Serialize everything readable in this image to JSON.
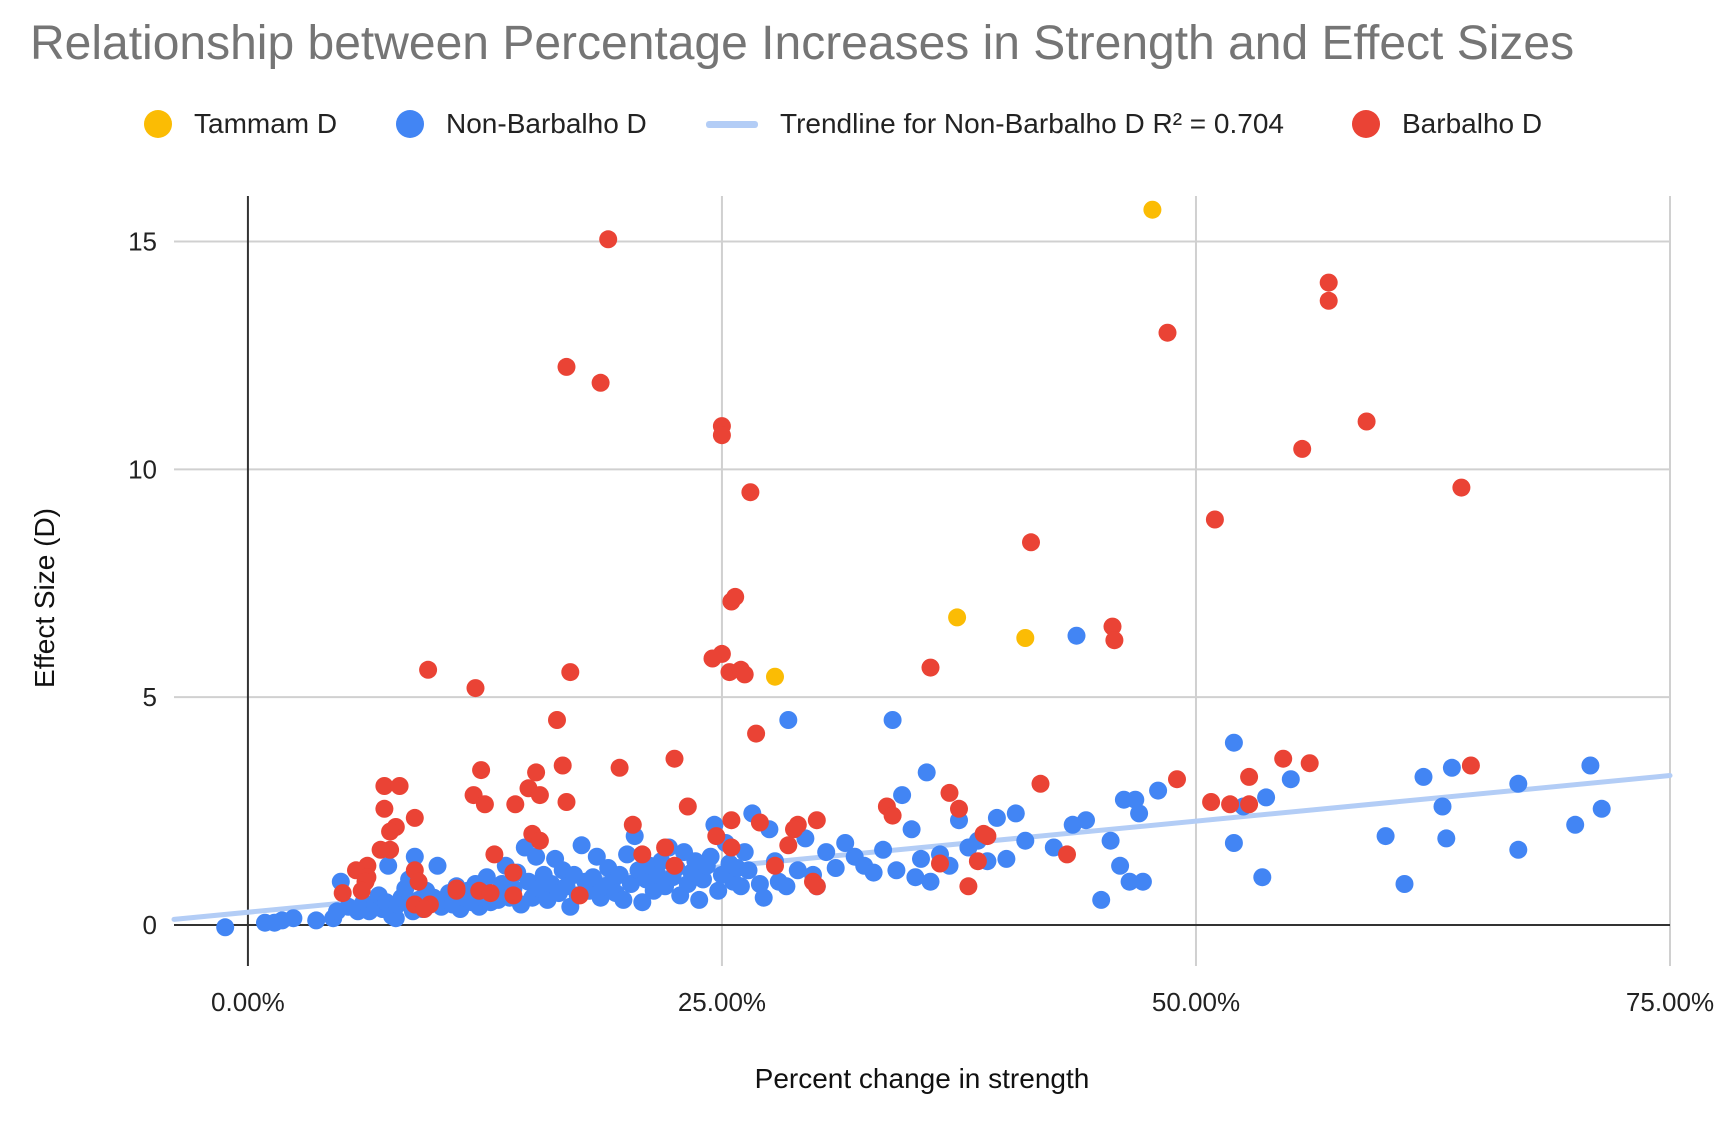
{
  "chart_data": {
    "type": "scatter",
    "title": "Relationship between Percentage Increases in Strength and Effect Sizes",
    "xlabel": "Percent change in strength",
    "ylabel": "Effect Size (D)",
    "xlim": [
      -0.02,
      0.75
    ],
    "ylim": [
      -0.9,
      16
    ],
    "x_ticks": [
      0,
      0.25,
      0.5,
      0.75
    ],
    "x_tick_labels": [
      "0.00%",
      "25.00%",
      "50.00%",
      "75.00%"
    ],
    "y_ticks": [
      0,
      5,
      10,
      15
    ],
    "y_tick_labels": [
      "0",
      "5",
      "10",
      "15"
    ],
    "grid": true,
    "legend_position": "top",
    "colors": {
      "tammam": "#fbbc04",
      "non_barbalho": "#4285f4",
      "trendline": "#b3cdf6",
      "barbalho": "#ea4335",
      "grid": "#d0d0d0",
      "axis": "#333333"
    },
    "trendline": {
      "label": "Trendline for Non-Barbalho D R² = 0.704",
      "r_squared": 0.704,
      "intercept": 0.28,
      "slope": 4.0
    },
    "series": [
      {
        "name": "Tammam D",
        "key": "tammam",
        "points": [
          [
            0.477,
            15.7
          ],
          [
            0.374,
            6.75
          ],
          [
            0.41,
            6.3
          ],
          [
            0.278,
            5.45
          ]
        ]
      },
      {
        "name": "Non-Barbalho D",
        "key": "non_barbalho",
        "points": [
          [
            -0.012,
            -0.05
          ],
          [
            0.009,
            0.05
          ],
          [
            0.014,
            0.05
          ],
          [
            0.018,
            0.1
          ],
          [
            0.024,
            0.15
          ],
          [
            0.036,
            0.1
          ],
          [
            0.045,
            0.15
          ],
          [
            0.047,
            0.3
          ],
          [
            0.049,
            0.95
          ],
          [
            0.053,
            0.4
          ],
          [
            0.058,
            0.3
          ],
          [
            0.061,
            0.5
          ],
          [
            0.064,
            0.3
          ],
          [
            0.067,
            0.45
          ],
          [
            0.069,
            0.65
          ],
          [
            0.071,
            0.35
          ],
          [
            0.073,
            0.5
          ],
          [
            0.074,
            1.3
          ],
          [
            0.076,
            0.2
          ],
          [
            0.078,
            0.15
          ],
          [
            0.079,
            0.45
          ],
          [
            0.081,
            0.6
          ],
          [
            0.083,
            0.8
          ],
          [
            0.085,
            1.0
          ],
          [
            0.087,
            0.3
          ],
          [
            0.088,
            1.5
          ],
          [
            0.09,
            0.55
          ],
          [
            0.092,
            0.35
          ],
          [
            0.094,
            0.75
          ],
          [
            0.096,
            0.45
          ],
          [
            0.098,
            0.6
          ],
          [
            0.1,
            1.3
          ],
          [
            0.102,
            0.4
          ],
          [
            0.104,
            0.55
          ],
          [
            0.106,
            0.7
          ],
          [
            0.108,
            0.45
          ],
          [
            0.11,
            0.85
          ],
          [
            0.112,
            0.35
          ],
          [
            0.114,
            0.6
          ],
          [
            0.116,
            0.75
          ],
          [
            0.118,
            0.5
          ],
          [
            0.12,
            0.9
          ],
          [
            0.122,
            0.4
          ],
          [
            0.124,
            0.6
          ],
          [
            0.126,
            1.05
          ],
          [
            0.128,
            0.5
          ],
          [
            0.13,
            0.7
          ],
          [
            0.132,
            0.55
          ],
          [
            0.134,
            0.9
          ],
          [
            0.136,
            1.3
          ],
          [
            0.138,
            0.6
          ],
          [
            0.14,
            0.8
          ],
          [
            0.142,
            1.15
          ],
          [
            0.144,
            0.45
          ],
          [
            0.146,
            1.7
          ],
          [
            0.148,
            0.95
          ],
          [
            0.15,
            0.6
          ],
          [
            0.152,
            1.5
          ],
          [
            0.154,
            0.8
          ],
          [
            0.156,
            1.1
          ],
          [
            0.158,
            0.55
          ],
          [
            0.16,
            0.9
          ],
          [
            0.162,
            1.45
          ],
          [
            0.164,
            0.7
          ],
          [
            0.166,
            1.2
          ],
          [
            0.168,
            0.85
          ],
          [
            0.17,
            0.4
          ],
          [
            0.172,
            1.1
          ],
          [
            0.174,
            0.65
          ],
          [
            0.176,
            1.75
          ],
          [
            0.178,
            0.95
          ],
          [
            0.18,
            0.75
          ],
          [
            0.182,
            1.05
          ],
          [
            0.184,
            1.5
          ],
          [
            0.186,
            0.6
          ],
          [
            0.188,
            0.85
          ],
          [
            0.19,
            1.25
          ],
          [
            0.192,
            0.95
          ],
          [
            0.194,
            0.7
          ],
          [
            0.196,
            1.1
          ],
          [
            0.198,
            0.55
          ],
          [
            0.2,
            1.55
          ],
          [
            0.202,
            0.9
          ],
          [
            0.204,
            1.95
          ],
          [
            0.206,
            1.2
          ],
          [
            0.208,
            0.5
          ],
          [
            0.21,
            1.0
          ],
          [
            0.212,
            1.3
          ],
          [
            0.214,
            0.75
          ],
          [
            0.216,
            1.1
          ],
          [
            0.218,
            1.4
          ],
          [
            0.22,
            0.85
          ],
          [
            0.222,
            1.7
          ],
          [
            0.224,
            1.05
          ],
          [
            0.226,
            1.25
          ],
          [
            0.228,
            0.65
          ],
          [
            0.23,
            1.6
          ],
          [
            0.232,
            0.9
          ],
          [
            0.234,
            1.15
          ],
          [
            0.236,
            1.4
          ],
          [
            0.238,
            0.55
          ],
          [
            0.24,
            1.0
          ],
          [
            0.242,
            1.3
          ],
          [
            0.244,
            1.5
          ],
          [
            0.246,
            2.2
          ],
          [
            0.248,
            0.75
          ],
          [
            0.25,
            1.1
          ],
          [
            0.252,
            1.8
          ],
          [
            0.254,
            1.35
          ],
          [
            0.256,
            0.95
          ],
          [
            0.258,
            1.25
          ],
          [
            0.26,
            0.85
          ],
          [
            0.262,
            1.6
          ],
          [
            0.264,
            1.2
          ],
          [
            0.266,
            2.45
          ],
          [
            0.27,
            0.9
          ],
          [
            0.272,
            0.6
          ],
          [
            0.275,
            2.1
          ],
          [
            0.278,
            1.4
          ],
          [
            0.28,
            0.95
          ],
          [
            0.284,
            0.85
          ],
          [
            0.285,
            4.5
          ],
          [
            0.29,
            1.2
          ],
          [
            0.294,
            1.9
          ],
          [
            0.298,
            1.1
          ],
          [
            0.3,
            0.85
          ],
          [
            0.305,
            1.6
          ],
          [
            0.31,
            1.25
          ],
          [
            0.315,
            1.8
          ],
          [
            0.32,
            1.5
          ],
          [
            0.325,
            1.3
          ],
          [
            0.33,
            1.15
          ],
          [
            0.335,
            1.65
          ],
          [
            0.34,
            4.5
          ],
          [
            0.342,
            1.2
          ],
          [
            0.345,
            2.85
          ],
          [
            0.35,
            2.1
          ],
          [
            0.352,
            1.05
          ],
          [
            0.355,
            1.45
          ],
          [
            0.358,
            3.35
          ],
          [
            0.36,
            0.95
          ],
          [
            0.365,
            1.55
          ],
          [
            0.37,
            1.3
          ],
          [
            0.375,
            2.3
          ],
          [
            0.38,
            1.7
          ],
          [
            0.385,
            1.85
          ],
          [
            0.39,
            1.4
          ],
          [
            0.395,
            2.35
          ],
          [
            0.4,
            1.45
          ],
          [
            0.405,
            2.45
          ],
          [
            0.41,
            1.85
          ],
          [
            0.425,
            1.7
          ],
          [
            0.435,
            2.2
          ],
          [
            0.437,
            6.35
          ],
          [
            0.442,
            2.3
          ],
          [
            0.45,
            0.55
          ],
          [
            0.455,
            1.85
          ],
          [
            0.46,
            1.3
          ],
          [
            0.462,
            2.75
          ],
          [
            0.465,
            0.95
          ],
          [
            0.468,
            2.75
          ],
          [
            0.47,
            2.45
          ],
          [
            0.472,
            0.95
          ],
          [
            0.48,
            2.95
          ],
          [
            0.52,
            4.0
          ],
          [
            0.52,
            1.8
          ],
          [
            0.525,
            2.6
          ],
          [
            0.535,
            1.05
          ],
          [
            0.537,
            2.8
          ],
          [
            0.55,
            3.2
          ],
          [
            0.6,
            1.95
          ],
          [
            0.61,
            0.9
          ],
          [
            0.62,
            3.25
          ],
          [
            0.63,
            2.6
          ],
          [
            0.632,
            1.9
          ],
          [
            0.635,
            3.45
          ],
          [
            0.67,
            3.1
          ],
          [
            0.67,
            1.65
          ],
          [
            0.7,
            2.2
          ],
          [
            0.708,
            3.5
          ],
          [
            0.714,
            2.55
          ]
        ]
      },
      {
        "name": "Barbalho D",
        "key": "barbalho",
        "points": [
          [
            0.19,
            15.05
          ],
          [
            0.57,
            14.1
          ],
          [
            0.57,
            13.7
          ],
          [
            0.485,
            13.0
          ],
          [
            0.168,
            12.25
          ],
          [
            0.186,
            11.9
          ],
          [
            0.25,
            10.95
          ],
          [
            0.25,
            10.75
          ],
          [
            0.59,
            11.05
          ],
          [
            0.556,
            10.45
          ],
          [
            0.64,
            9.6
          ],
          [
            0.265,
            9.5
          ],
          [
            0.51,
            8.9
          ],
          [
            0.413,
            8.4
          ],
          [
            0.255,
            7.1
          ],
          [
            0.257,
            7.2
          ],
          [
            0.456,
            6.55
          ],
          [
            0.457,
            6.25
          ],
          [
            0.25,
            5.95
          ],
          [
            0.245,
            5.85
          ],
          [
            0.095,
            5.6
          ],
          [
            0.17,
            5.55
          ],
          [
            0.254,
            5.55
          ],
          [
            0.26,
            5.6
          ],
          [
            0.262,
            5.5
          ],
          [
            0.36,
            5.65
          ],
          [
            0.12,
            5.2
          ],
          [
            0.163,
            4.5
          ],
          [
            0.268,
            4.2
          ],
          [
            0.225,
            3.65
          ],
          [
            0.546,
            3.65
          ],
          [
            0.56,
            3.55
          ],
          [
            0.645,
            3.5
          ],
          [
            0.166,
            3.5
          ],
          [
            0.196,
            3.45
          ],
          [
            0.123,
            3.4
          ],
          [
            0.152,
            3.35
          ],
          [
            0.072,
            3.05
          ],
          [
            0.08,
            3.05
          ],
          [
            0.528,
            3.25
          ],
          [
            0.49,
            3.2
          ],
          [
            0.418,
            3.1
          ],
          [
            0.148,
            3.0
          ],
          [
            0.119,
            2.85
          ],
          [
            0.154,
            2.85
          ],
          [
            0.37,
            2.9
          ],
          [
            0.141,
            2.65
          ],
          [
            0.168,
            2.7
          ],
          [
            0.232,
            2.6
          ],
          [
            0.125,
            2.65
          ],
          [
            0.337,
            2.6
          ],
          [
            0.375,
            2.55
          ],
          [
            0.508,
            2.7
          ],
          [
            0.518,
            2.65
          ],
          [
            0.528,
            2.65
          ],
          [
            0.072,
            2.55
          ],
          [
            0.088,
            2.35
          ],
          [
            0.34,
            2.4
          ],
          [
            0.255,
            2.3
          ],
          [
            0.27,
            2.25
          ],
          [
            0.3,
            2.3
          ],
          [
            0.29,
            2.2
          ],
          [
            0.203,
            2.2
          ],
          [
            0.288,
            2.1
          ],
          [
            0.078,
            2.15
          ],
          [
            0.075,
            2.05
          ],
          [
            0.15,
            2.0
          ],
          [
            0.154,
            1.85
          ],
          [
            0.247,
            1.95
          ],
          [
            0.388,
            2.0
          ],
          [
            0.39,
            1.95
          ],
          [
            0.22,
            1.7
          ],
          [
            0.255,
            1.7
          ],
          [
            0.285,
            1.75
          ],
          [
            0.075,
            1.65
          ],
          [
            0.07,
            1.65
          ],
          [
            0.385,
            1.4
          ],
          [
            0.365,
            1.35
          ],
          [
            0.432,
            1.55
          ],
          [
            0.13,
            1.55
          ],
          [
            0.208,
            1.55
          ],
          [
            0.063,
            1.3
          ],
          [
            0.057,
            1.2
          ],
          [
            0.088,
            1.2
          ],
          [
            0.225,
            1.3
          ],
          [
            0.278,
            1.3
          ],
          [
            0.14,
            1.15
          ],
          [
            0.063,
            1.05
          ],
          [
            0.062,
            0.95
          ],
          [
            0.09,
            0.95
          ],
          [
            0.298,
            0.95
          ],
          [
            0.3,
            0.85
          ],
          [
            0.38,
            0.85
          ],
          [
            0.06,
            0.75
          ],
          [
            0.05,
            0.7
          ],
          [
            0.122,
            0.75
          ],
          [
            0.128,
            0.7
          ],
          [
            0.14,
            0.65
          ],
          [
            0.175,
            0.65
          ],
          [
            0.088,
            0.45
          ],
          [
            0.096,
            0.45
          ],
          [
            0.093,
            0.35
          ],
          [
            0.11,
            0.8
          ],
          [
            0.11,
            0.75
          ]
        ]
      }
    ]
  }
}
